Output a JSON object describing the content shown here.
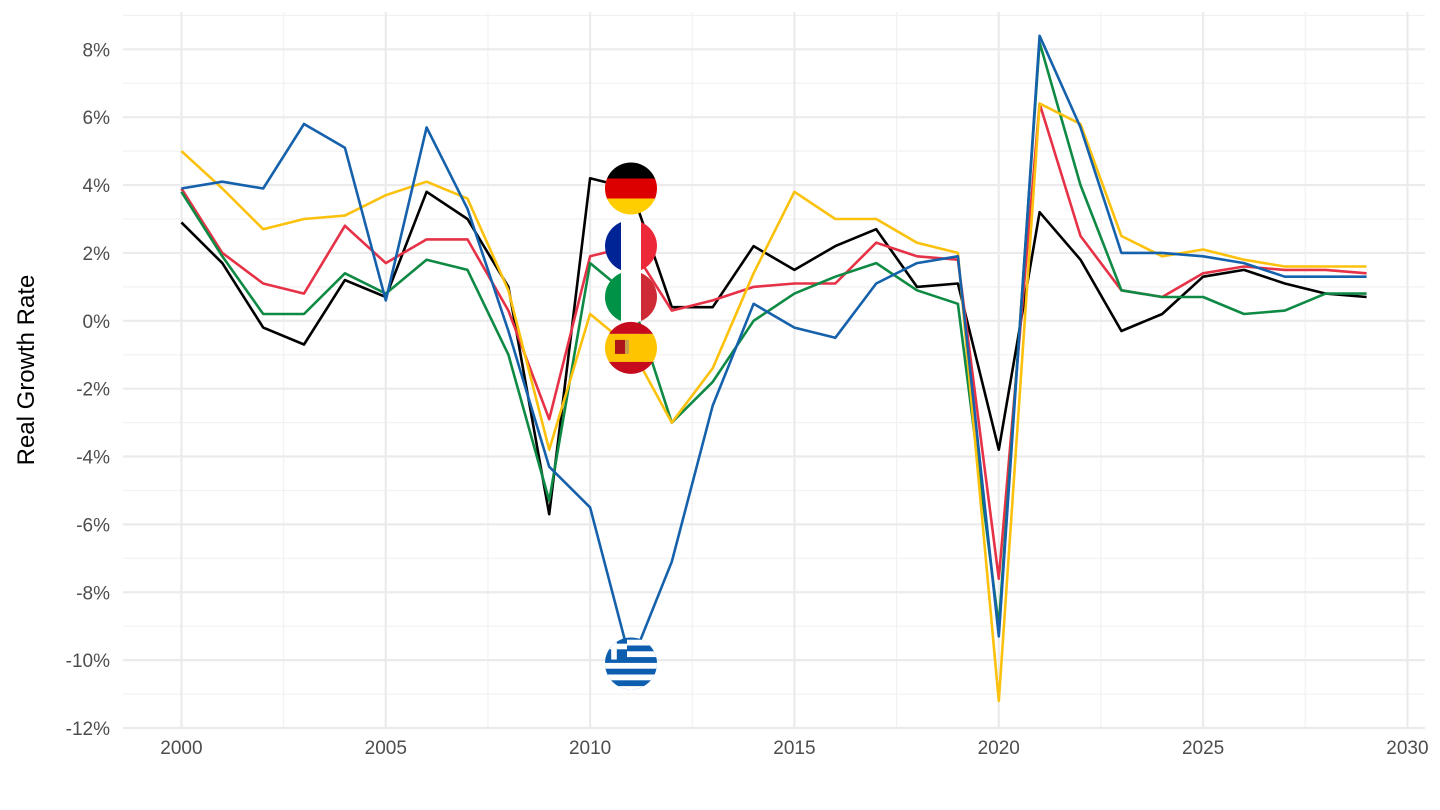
{
  "chart_data": {
    "type": "line",
    "title": "",
    "xlabel": "",
    "ylabel": "Real Growth Rate",
    "xlim": [
      1998.57,
      2030.43
    ],
    "ylim": [
      -12,
      9.1
    ],
    "x_ticks": [
      2000,
      2005,
      2010,
      2015,
      2020,
      2025,
      2030
    ],
    "x_tick_labels": [
      "2000",
      "2005",
      "2010",
      "2015",
      "2020",
      "2025",
      "2030"
    ],
    "y_ticks": [
      -12,
      -10,
      -8,
      -6,
      -4,
      -2,
      0,
      2,
      4,
      6,
      8
    ],
    "y_tick_labels": [
      "-12%",
      "-10%",
      "-8%",
      "-6%",
      "-4%",
      "-2%",
      "0%",
      "2%",
      "4%",
      "6%",
      "8%"
    ],
    "grid": true,
    "legend": "none",
    "x": [
      2000,
      2001,
      2002,
      2003,
      2004,
      2005,
      2006,
      2007,
      2008,
      2009,
      2010,
      2011,
      2012,
      2013,
      2014,
      2015,
      2016,
      2017,
      2018,
      2019,
      2020,
      2021,
      2022,
      2023,
      2024,
      2025,
      2026,
      2027,
      2028,
      2029
    ],
    "series": [
      {
        "color": "#000000",
        "flag": "germany",
        "flag_point": [
          2011,
          3.9
        ],
        "values": [
          2.9,
          1.7,
          -0.2,
          -0.7,
          1.2,
          0.7,
          3.8,
          3.0,
          1.0,
          -5.7,
          4.2,
          3.9,
          0.4,
          0.4,
          2.2,
          1.5,
          2.2,
          2.7,
          1.0,
          1.1,
          -3.8,
          3.2,
          1.8,
          -0.3,
          0.2,
          1.3,
          1.5,
          1.1,
          0.8,
          0.7
        ]
      },
      {
        "color": "#e63247",
        "flag": "france",
        "flag_point": [
          2011,
          2.2
        ],
        "values": [
          3.9,
          2.0,
          1.1,
          0.8,
          2.8,
          1.7,
          2.4,
          2.4,
          0.3,
          -2.9,
          1.9,
          2.2,
          0.3,
          0.6,
          1.0,
          1.1,
          1.1,
          2.3,
          1.9,
          1.8,
          -7.6,
          6.4,
          2.5,
          0.9,
          0.7,
          1.4,
          1.6,
          1.5,
          1.5,
          1.4
        ]
      },
      {
        "color": "#0e8a45",
        "flag": "italy",
        "flag_point": [
          2011,
          0.7
        ],
        "values": [
          3.8,
          1.9,
          0.2,
          0.2,
          1.4,
          0.8,
          1.8,
          1.5,
          -1.0,
          -5.3,
          1.7,
          0.7,
          -3.0,
          -1.8,
          0.0,
          0.8,
          1.3,
          1.7,
          0.9,
          0.5,
          -9.0,
          8.2,
          4.0,
          0.9,
          0.7,
          0.7,
          0.2,
          0.3,
          0.8,
          0.8
        ]
      },
      {
        "color": "#fcc10d",
        "flag": "spain",
        "flag_point": [
          2011,
          -0.8
        ],
        "values": [
          5.0,
          3.9,
          2.7,
          3.0,
          3.1,
          3.7,
          4.1,
          3.6,
          0.9,
          -3.8,
          0.2,
          -0.8,
          -3.0,
          -1.4,
          1.4,
          3.8,
          3.0,
          3.0,
          2.3,
          2.0,
          -11.2,
          6.4,
          5.8,
          2.5,
          1.9,
          2.1,
          1.8,
          1.6,
          1.6,
          1.6
        ]
      },
      {
        "color": "#1561ac",
        "flag": "greece",
        "flag_point": [
          2011,
          -10.1
        ],
        "values": [
          3.9,
          4.1,
          3.9,
          5.8,
          5.1,
          0.6,
          5.7,
          3.3,
          -0.3,
          -4.3,
          -5.5,
          -10.1,
          -7.1,
          -2.5,
          0.5,
          -0.2,
          -0.5,
          1.1,
          1.7,
          1.9,
          -9.3,
          8.4,
          5.7,
          2.0,
          2.0,
          1.9,
          1.7,
          1.3,
          1.3,
          1.3
        ]
      }
    ]
  }
}
